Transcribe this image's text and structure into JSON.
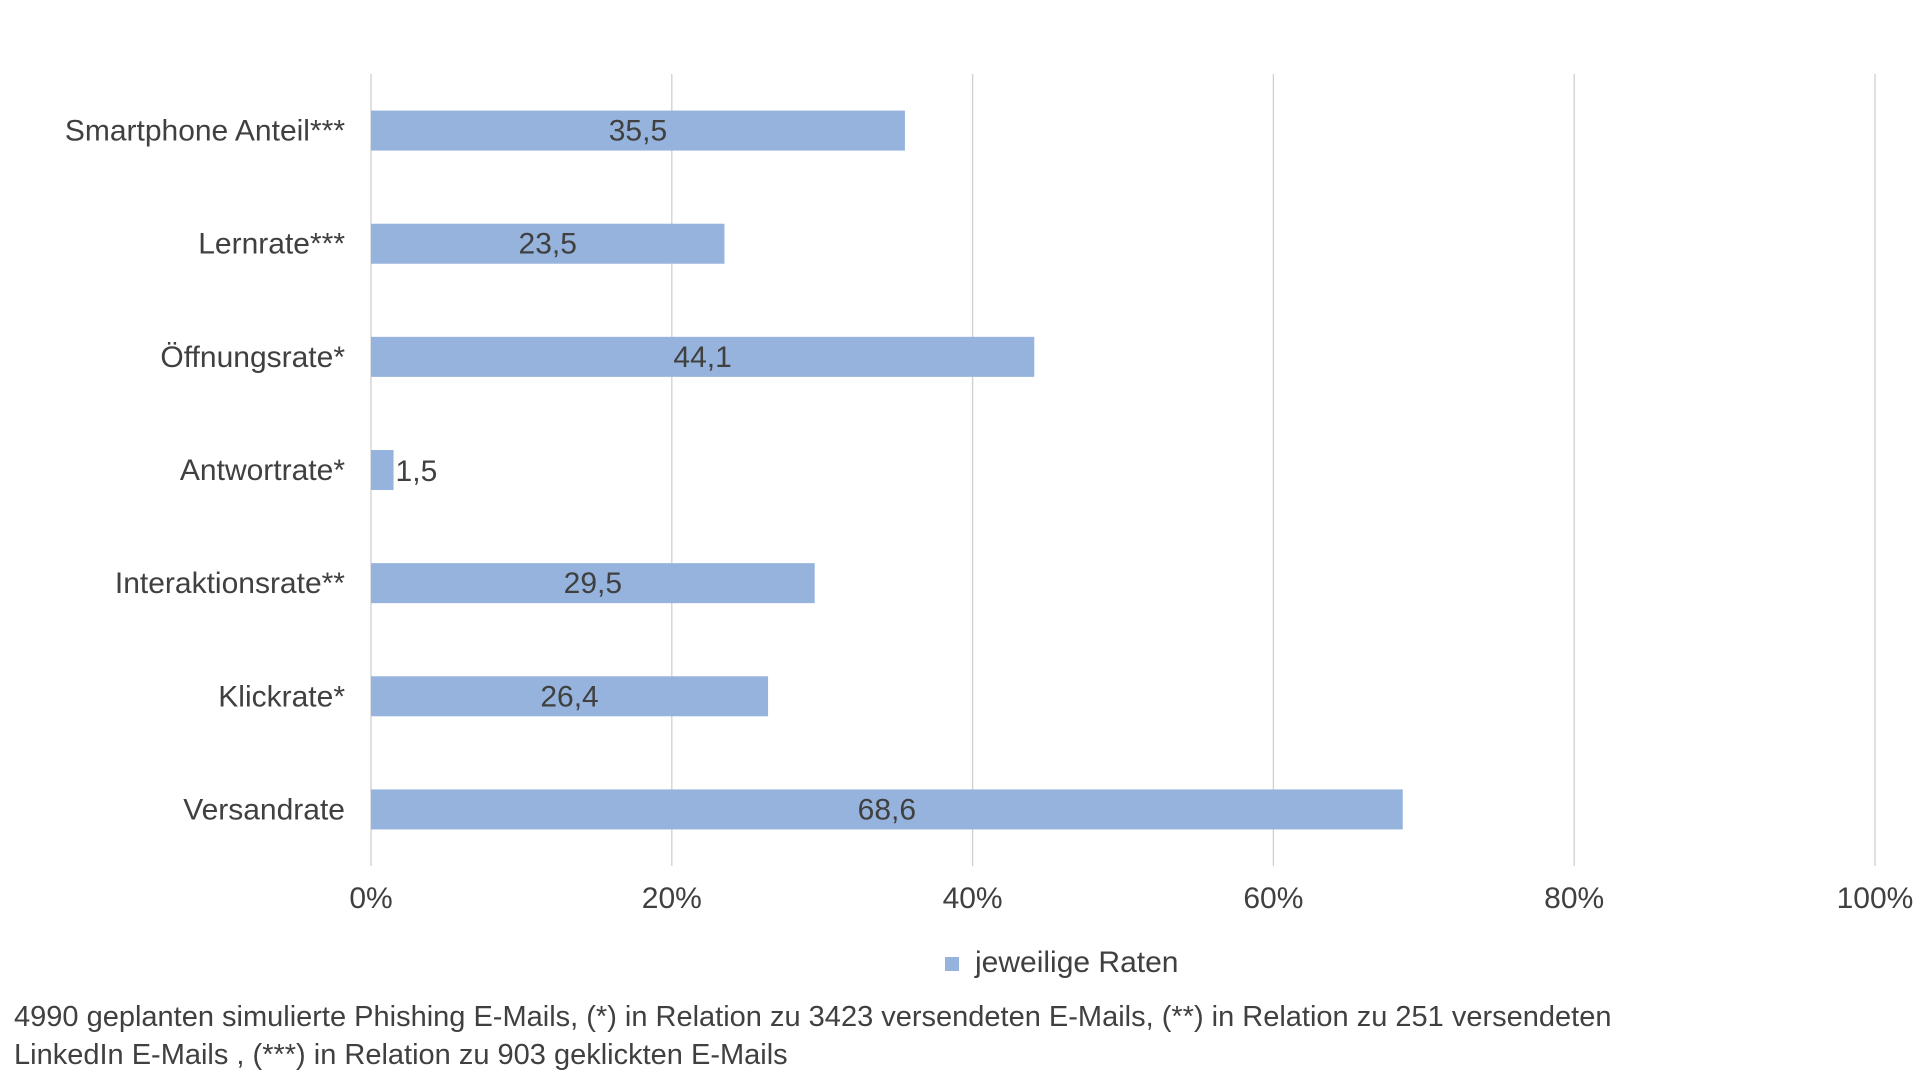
{
  "chart_data": {
    "type": "bar",
    "orientation": "horizontal",
    "categories": [
      "Smartphone Anteil***",
      "Lernrate***",
      "Öffnungsrate*",
      "Antwortrate*",
      "Interaktionsrate**",
      "Klickrate*",
      "Versandrate"
    ],
    "series": [
      {
        "name": "jeweilige Raten",
        "values": [
          35.5,
          23.5,
          44.1,
          1.5,
          29.5,
          26.4,
          68.6
        ],
        "data_labels": [
          "35,5",
          "23,5",
          "44,1",
          "1,5",
          "29,5",
          "26,4",
          "68,6"
        ],
        "color": "#95b3dc"
      }
    ],
    "xlim": [
      0,
      100
    ],
    "x_ticks": [
      0,
      20,
      40,
      60,
      80,
      100
    ],
    "x_tick_labels": [
      "0%",
      "20%",
      "40%",
      "60%",
      "80%",
      "100%"
    ],
    "grid": true,
    "legend_position": "bottom",
    "title": "",
    "xlabel": "",
    "ylabel": ""
  },
  "footnote": {
    "line1": "4990 geplanten simulierte Phishing E-Mails, (*) in Relation zu 3423 versendeten E-Mails, (**) in Relation zu 251 versendeten",
    "line2": "LinkedIn E-Mails , (***) in Relation zu 903 geklickten E-Mails"
  }
}
